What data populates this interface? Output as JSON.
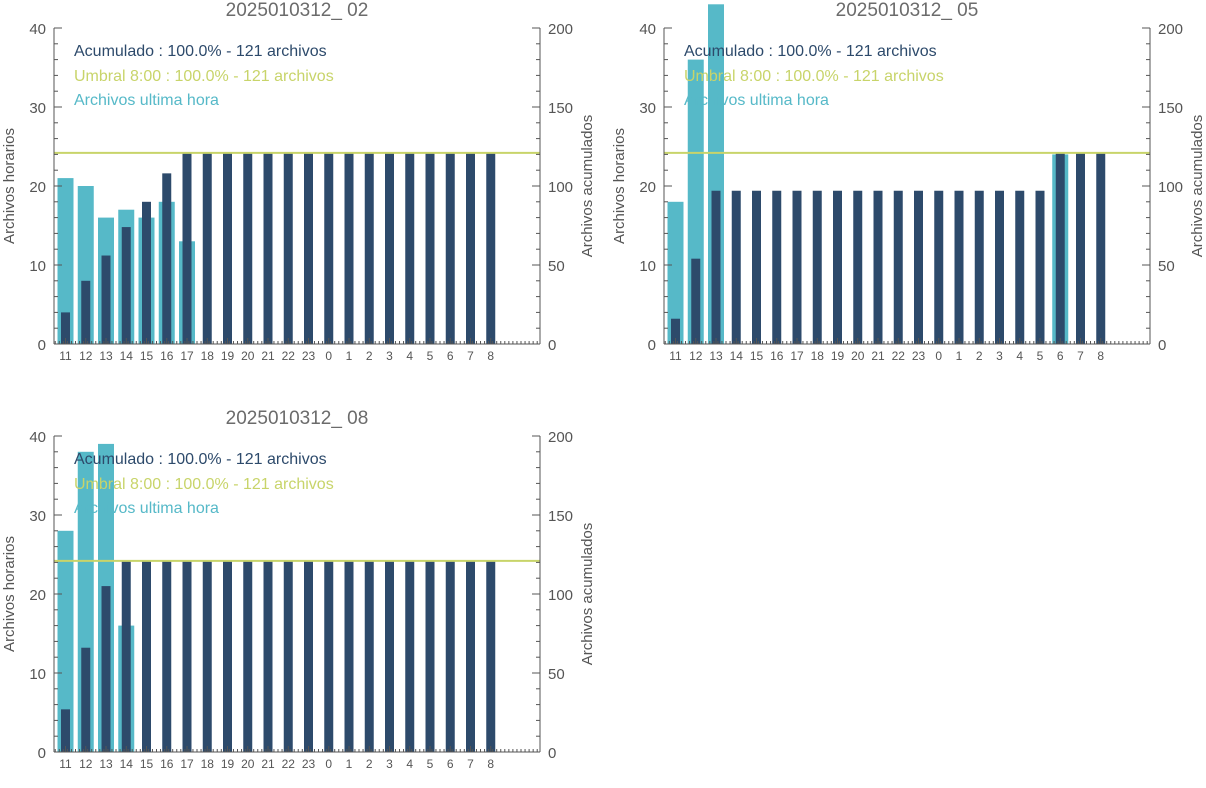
{
  "colors": {
    "hourly": "#56b9c8",
    "cumulative": "#2d4a6b",
    "threshold": "#c8d46a",
    "axis": "#555555",
    "title": "#6b6b6b"
  },
  "legend": {
    "cumulative": "Acumulado : 100.0% - 121 archivos",
    "threshold": "Umbral 8:00 : 100.0% - 121 archivos",
    "hourly": "Archivos ultima hora"
  },
  "chart_data": [
    {
      "type": "bar",
      "title": "2025010312_ 02",
      "ylabel": "Archivos horarios",
      "y2label": "Archivos acumulados",
      "ylim": [
        0,
        40
      ],
      "y2lim": [
        0,
        200
      ],
      "yticks": [
        0,
        10,
        20,
        30,
        40
      ],
      "y2ticks": [
        0,
        50,
        100,
        150,
        200
      ],
      "categories": [
        "11",
        "12",
        "13",
        "14",
        "15",
        "16",
        "17",
        "18",
        "19",
        "20",
        "21",
        "22",
        "23",
        "0",
        "1",
        "2",
        "3",
        "4",
        "5",
        "6",
        "7",
        "8"
      ],
      "threshold": 121,
      "series": [
        {
          "axis": "left",
          "values": [
            21,
            20,
            16,
            17,
            16,
            18,
            13,
            0,
            0,
            0,
            0,
            0,
            0,
            0,
            0,
            0,
            0,
            0,
            0,
            0,
            0,
            0
          ]
        },
        {
          "axis": "right",
          "values": [
            20,
            40,
            56,
            74,
            90,
            108,
            121,
            121,
            121,
            121,
            121,
            121,
            121,
            121,
            121,
            121,
            121,
            121,
            121,
            121,
            121,
            121
          ]
        }
      ]
    },
    {
      "type": "bar",
      "title": "2025010312_ 05",
      "ylabel": "Archivos horarios",
      "y2label": "Archivos acumulados",
      "ylim": [
        0,
        40
      ],
      "y2lim": [
        0,
        200
      ],
      "yticks": [
        0,
        10,
        20,
        30,
        40
      ],
      "y2ticks": [
        0,
        50,
        100,
        150,
        200
      ],
      "categories": [
        "11",
        "12",
        "13",
        "14",
        "15",
        "16",
        "17",
        "18",
        "19",
        "20",
        "21",
        "22",
        "23",
        "0",
        "1",
        "2",
        "3",
        "4",
        "5",
        "6",
        "7",
        "8"
      ],
      "threshold": 121,
      "series": [
        {
          "axis": "left",
          "values": [
            18,
            36,
            43,
            0,
            0,
            0,
            0,
            0,
            0,
            0,
            0,
            0,
            0,
            0,
            0,
            0,
            0,
            0,
            0,
            24,
            0,
            0
          ]
        },
        {
          "axis": "right",
          "values": [
            16,
            54,
            97,
            97,
            97,
            97,
            97,
            97,
            97,
            97,
            97,
            97,
            97,
            97,
            97,
            97,
            97,
            97,
            97,
            121,
            121,
            121
          ]
        }
      ]
    },
    {
      "type": "bar",
      "title": "2025010312_ 08",
      "ylabel": "Archivos horarios",
      "y2label": "Archivos acumulados",
      "ylim": [
        0,
        40
      ],
      "y2lim": [
        0,
        200
      ],
      "yticks": [
        0,
        10,
        20,
        30,
        40
      ],
      "y2ticks": [
        0,
        50,
        100,
        150,
        200
      ],
      "categories": [
        "11",
        "12",
        "13",
        "14",
        "15",
        "16",
        "17",
        "18",
        "19",
        "20",
        "21",
        "22",
        "23",
        "0",
        "1",
        "2",
        "3",
        "4",
        "5",
        "6",
        "7",
        "8"
      ],
      "threshold": 121,
      "series": [
        {
          "axis": "left",
          "values": [
            28,
            38,
            39,
            16,
            0,
            0,
            0,
            0,
            0,
            0,
            0,
            0,
            0,
            0,
            0,
            0,
            0,
            0,
            0,
            0,
            0,
            0
          ]
        },
        {
          "axis": "right",
          "values": [
            27,
            66,
            105,
            121,
            121,
            121,
            121,
            121,
            121,
            121,
            121,
            121,
            121,
            121,
            121,
            121,
            121,
            121,
            121,
            121,
            121,
            121
          ]
        }
      ]
    }
  ]
}
